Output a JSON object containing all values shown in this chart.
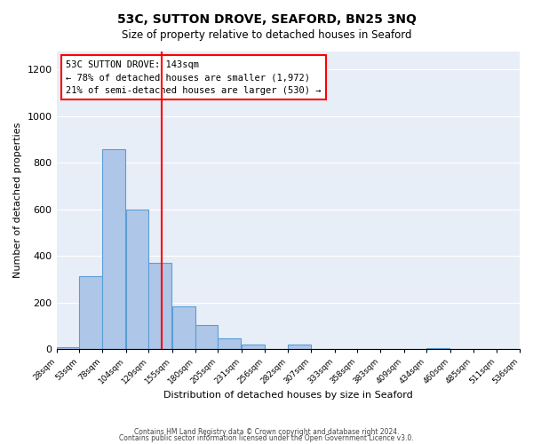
{
  "title": "53C, SUTTON DROVE, SEAFORD, BN25 3NQ",
  "subtitle": "Size of property relative to detached houses in Seaford",
  "xlabel": "Distribution of detached houses by size in Seaford",
  "ylabel": "Number of detached properties",
  "bar_color": "#aec6e8",
  "bar_edge_color": "#5a9fd4",
  "background_color": "#e8eef8",
  "vline_x": 143,
  "vline_color": "red",
  "annotation_title": "53C SUTTON DROVE: 143sqm",
  "annotation_line1": "← 78% of detached houses are smaller (1,972)",
  "annotation_line2": "21% of semi-detached houses are larger (530) →",
  "footer_line1": "Contains HM Land Registry data © Crown copyright and database right 2024.",
  "footer_line2": "Contains public sector information licensed under the Open Government Licence v3.0.",
  "bin_edges": [
    28,
    53,
    78,
    104,
    129,
    155,
    180,
    205,
    231,
    256,
    282,
    307,
    333,
    358,
    383,
    409,
    434,
    460,
    485,
    511,
    536
  ],
  "bin_labels": [
    "28sqm",
    "53sqm",
    "78sqm",
    "104sqm",
    "129sqm",
    "155sqm",
    "180sqm",
    "205sqm",
    "231sqm",
    "256sqm",
    "282sqm",
    "307sqm",
    "333sqm",
    "358sqm",
    "383sqm",
    "409sqm",
    "434sqm",
    "460sqm",
    "485sqm",
    "511sqm",
    "536sqm"
  ],
  "counts": [
    10,
    315,
    860,
    600,
    370,
    185,
    105,
    47,
    20,
    0,
    20,
    0,
    0,
    0,
    0,
    0,
    5,
    0,
    0,
    0
  ],
  "ylim": [
    0,
    1280
  ],
  "yticks": [
    0,
    200,
    400,
    600,
    800,
    1000,
    1200
  ]
}
